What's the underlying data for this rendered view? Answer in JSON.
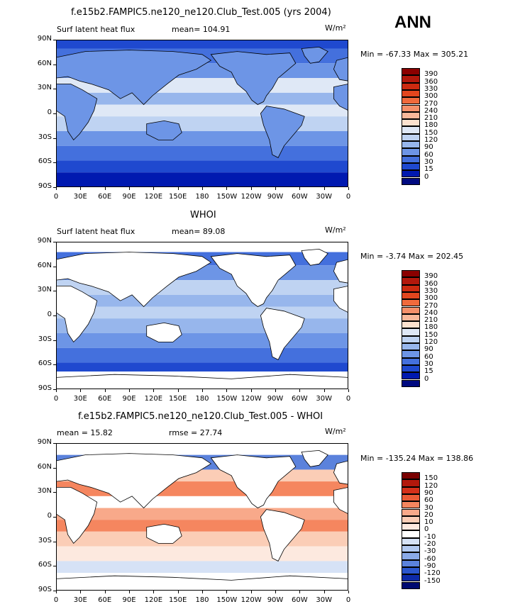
{
  "header": {
    "main_title": "f.e15b2.FAMPIC5.ne120_ne120.Club_Test.005 (yrs 2004)",
    "season": "ANN"
  },
  "panels": [
    {
      "id": "model",
      "title": "",
      "left_label": "Surf latent heat flux",
      "mean_label": "mean=",
      "mean_value": "104.91",
      "units": "W/m²",
      "min_label": "Min =",
      "min_value": "-67.33",
      "max_label": "Max =",
      "max_value": "305.21",
      "colorbar": [
        "390",
        "360",
        "330",
        "300",
        "270",
        "240",
        "210",
        "180",
        "150",
        "120",
        "90",
        "60",
        "30",
        "15",
        "0"
      ],
      "colors": [
        "#8b0000",
        "#b2180c",
        "#cc2a10",
        "#e2461e",
        "#f06a3c",
        "#f5906a",
        "#f9b89a",
        "#fde2cf",
        "#dfe8f6",
        "#bfd3f2",
        "#97b6ec",
        "#6d95e6",
        "#4470dd",
        "#1f49cf",
        "#0019b0",
        "#000a80"
      ]
    },
    {
      "id": "obs",
      "title": "WHOI",
      "left_label": "Surf latent heat flux",
      "mean_label": "mean=",
      "mean_value": "89.08",
      "units": "W/m²",
      "min_label": "Min =",
      "min_value": "-3.74",
      "max_label": "Max =",
      "max_value": "202.45",
      "colorbar": [
        "390",
        "360",
        "330",
        "300",
        "270",
        "240",
        "210",
        "180",
        "150",
        "120",
        "90",
        "60",
        "30",
        "15",
        "0"
      ],
      "colors": [
        "#8b0000",
        "#b2180c",
        "#cc2a10",
        "#e2461e",
        "#f06a3c",
        "#f5906a",
        "#f9b89a",
        "#fde2cf",
        "#dfe8f6",
        "#bfd3f2",
        "#97b6ec",
        "#6d95e6",
        "#4470dd",
        "#1f49cf",
        "#0019b0",
        "#000a80"
      ]
    },
    {
      "id": "diff",
      "title": "f.e15b2.FAMPIC5.ne120_ne120.Club_Test.005 - WHOI",
      "left_label": "mean =",
      "mean_label": "",
      "mean_value": "15.82",
      "rmse_label": "rmse =",
      "rmse_value": "27.74",
      "units": "W/m²",
      "min_label": "Min =",
      "min_value": "-135.24",
      "max_label": "Max =",
      "max_value": "138.86",
      "colorbar": [
        "150",
        "120",
        "90",
        "60",
        "30",
        "20",
        "10",
        "0",
        "-10",
        "-20",
        "-30",
        "-60",
        "-90",
        "-120",
        "-150"
      ],
      "colors": [
        "#7a0000",
        "#b2180c",
        "#d4301a",
        "#ea5a36",
        "#f5865f",
        "#f8a98a",
        "#fbcdb6",
        "#fde9df",
        "#ffffff",
        "#d6e2f6",
        "#b2c9f0",
        "#8aaae8",
        "#5b82dc",
        "#2b56cc",
        "#0d2aa8",
        "#000a70"
      ]
    }
  ],
  "axes": {
    "lat_ticks": [
      "90N",
      "60N",
      "30N",
      "0",
      "30S",
      "60S",
      "90S"
    ],
    "lon_ticks": [
      "0",
      "30E",
      "60E",
      "90E",
      "120E",
      "150E",
      "180",
      "150W",
      "120W",
      "90W",
      "60W",
      "30W",
      "0"
    ]
  },
  "chart_data": [
    {
      "type": "heatmap",
      "title": "f.e15b2.FAMPIC5.ne120_ne120.Club_Test.005 (yrs 2004)",
      "subtitle": "Surf latent heat flux",
      "units": "W/m²",
      "mean": 104.91,
      "min": -67.33,
      "max": 305.21,
      "xlim": [
        0,
        360
      ],
      "ylim": [
        -90,
        90
      ],
      "colorbar_levels": [
        0,
        15,
        30,
        60,
        90,
        120,
        150,
        180,
        210,
        240,
        270,
        300,
        330,
        360,
        390
      ]
    },
    {
      "type": "heatmap",
      "title": "WHOI",
      "subtitle": "Surf latent heat flux",
      "units": "W/m²",
      "mean": 89.08,
      "min": -3.74,
      "max": 202.45,
      "xlim": [
        0,
        360
      ],
      "ylim": [
        -90,
        90
      ],
      "colorbar_levels": [
        0,
        15,
        30,
        60,
        90,
        120,
        150,
        180,
        210,
        240,
        270,
        300,
        330,
        360,
        390
      ]
    },
    {
      "type": "heatmap",
      "title": "f.e15b2.FAMPIC5.ne120_ne120.Club_Test.005 - WHOI",
      "units": "W/m²",
      "mean": 15.82,
      "rmse": 27.74,
      "min": -135.24,
      "max": 138.86,
      "xlim": [
        0,
        360
      ],
      "ylim": [
        -90,
        90
      ],
      "colorbar_levels": [
        -150,
        -120,
        -90,
        -60,
        -30,
        -20,
        -10,
        0,
        10,
        20,
        30,
        60,
        90,
        120,
        150
      ]
    }
  ]
}
